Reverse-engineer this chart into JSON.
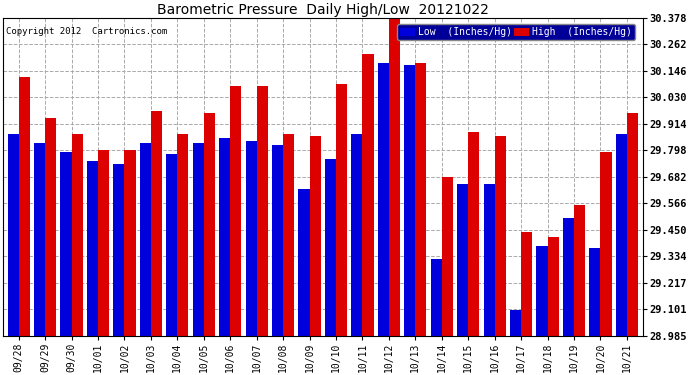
{
  "title": "Barometric Pressure  Daily High/Low  20121022",
  "copyright": "Copyright 2012  Cartronics.com",
  "dates": [
    "09/28",
    "09/29",
    "09/30",
    "10/01",
    "10/02",
    "10/03",
    "10/04",
    "10/05",
    "10/06",
    "10/07",
    "10/08",
    "10/09",
    "10/10",
    "10/11",
    "10/12",
    "10/13",
    "10/14",
    "10/15",
    "10/16",
    "10/17",
    "10/18",
    "10/19",
    "10/20",
    "10/21"
  ],
  "high": [
    30.12,
    29.94,
    29.87,
    29.8,
    29.8,
    29.97,
    29.87,
    29.96,
    30.08,
    30.08,
    29.87,
    29.86,
    30.09,
    30.22,
    30.38,
    30.18,
    29.68,
    29.88,
    29.86,
    29.44,
    29.42,
    29.56,
    29.79,
    29.96
  ],
  "low": [
    29.87,
    29.83,
    29.79,
    29.75,
    29.74,
    29.83,
    29.78,
    29.83,
    29.85,
    29.84,
    29.82,
    29.63,
    29.76,
    29.87,
    30.18,
    30.17,
    29.32,
    29.65,
    29.65,
    29.1,
    29.38,
    29.5,
    29.37,
    29.87
  ],
  "low_color": "#0000dd",
  "high_color": "#dd0000",
  "bg_color": "#ffffff",
  "grid_color": "#aaaaaa",
  "ylim_min": 28.985,
  "ylim_max": 30.378,
  "yticks": [
    28.985,
    29.101,
    29.217,
    29.334,
    29.45,
    29.566,
    29.682,
    29.798,
    29.914,
    30.03,
    30.146,
    30.262,
    30.378
  ],
  "legend_bg": "#000099"
}
